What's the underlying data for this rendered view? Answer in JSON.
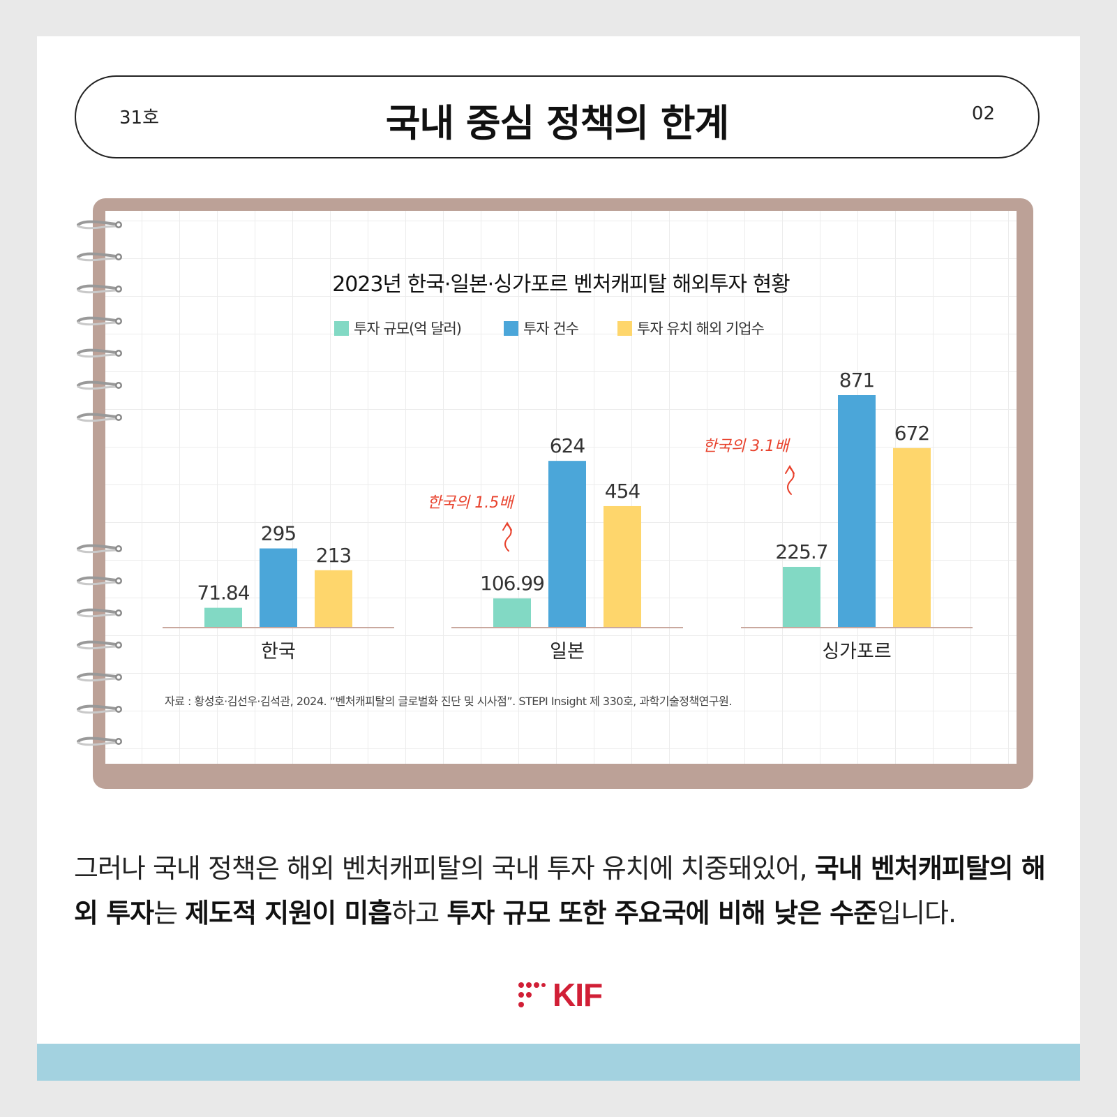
{
  "header": {
    "issue": "31호",
    "title": "국내 중심 정책의 한계",
    "page": "02"
  },
  "chart_data": {
    "type": "bar",
    "title": "2023년 한국·일본·싱가포르 벤처캐피탈 해외투자 현황",
    "categories": [
      "한국",
      "일본",
      "싱가포르"
    ],
    "series": [
      {
        "name": "투자 규모(억 달러)",
        "values": [
          71.84,
          106.99,
          225.7
        ],
        "labels": [
          "71.84",
          "106.99",
          "225.7"
        ],
        "color": "#82d9c4"
      },
      {
        "name": "투자 건수",
        "values": [
          295,
          624,
          871
        ],
        "labels": [
          "295",
          "624",
          "871"
        ],
        "color": "#4ba6d9"
      },
      {
        "name": "투자 유치 해외 기업수",
        "values": [
          213,
          454,
          672
        ],
        "labels": [
          "213",
          "454",
          "672"
        ],
        "color": "#fed66c"
      }
    ],
    "legend_position": "top-center",
    "annotations": [
      {
        "category": "일본",
        "text": "한국의 1.5배",
        "color": "#e8412c"
      },
      {
        "category": "싱가포르",
        "text": "한국의 3.1배",
        "color": "#e8412c"
      }
    ],
    "grid": true,
    "source": "자료 : 황성호·김선우·김석관, 2024. “벤처캐피탈의 글로벌화 진단 및 시사점”. STEPI Insight 제 330호, 과학기술정책연구원."
  },
  "body": {
    "p1": "그러나 국내 정책은 해외 벤처캐피탈의 국내 투자 유치에 치중돼있어, ",
    "b1": "국내 벤처캐피탈의 해외 투자",
    "p2": "는 ",
    "b2": "제도적 지원이 미흡",
    "p3": "하고 ",
    "b3": "투자 규모 또한 주요국에 비해 낮은 수준",
    "p4": "입니다."
  },
  "footer": {
    "logo_text": "KIF"
  }
}
